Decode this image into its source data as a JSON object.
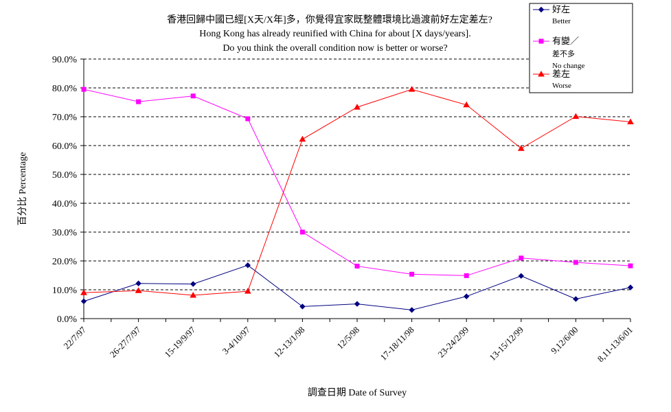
{
  "chart_data": {
    "type": "line",
    "title_lines": [
      "香港回歸中國已經[X天/X年]多，你覺得宜家既整體環境比過渡前好左定差左?",
      "Hong Kong has already reunified with China for about [X days/years].",
      "Do you think the overall condition now is better or worse?"
    ],
    "xlabel": "調查日期 Date of Survey",
    "ylabel": "百分比 Percentage",
    "ylim": [
      0,
      90
    ],
    "ytick_step": 10,
    "ytick_labels": [
      "0.0%",
      "10.0%",
      "20.0%",
      "30.0%",
      "40.0%",
      "50.0%",
      "60.0%",
      "70.0%",
      "80.0%",
      "90.0%"
    ],
    "grid": "horizontal-dashed",
    "legend_position": "top-right",
    "categories": [
      "22/7/97",
      "26-27/7/97",
      "15-19/9/97",
      "3-4/10/97",
      "12-13/1/98",
      "12/5/98",
      "17-18/11/98",
      "23-24/2/99",
      "13-15/12/99",
      "9,12/6/00",
      "8,11-13/6/01"
    ],
    "x": [
      "22/7/97",
      "",
      "26-27/7/97",
      "",
      "15-19/9/97",
      "",
      "3-4/10/97",
      "",
      "12-13/1/98",
      "",
      "12/5/98",
      "",
      "17-18/11/98",
      "",
      "23-24/2/99",
      "",
      "13-15/12/99",
      "",
      "9,12/6/00",
      "",
      "8,11-13/6/01"
    ],
    "series": [
      {
        "legend_lines": [
          "好左",
          "Better"
        ],
        "color": "#000080",
        "marker": "diamond",
        "values": [
          6.0,
          12.2,
          12.0,
          18.5,
          4.2,
          5.1,
          3.0,
          7.7,
          14.8,
          6.8,
          10.8
        ]
      },
      {
        "legend_lines": [
          "有變／",
          "差不多",
          "No change"
        ],
        "color": "#ff00ff",
        "marker": "square",
        "values": [
          79.5,
          75.2,
          77.2,
          69.3,
          30.0,
          18.2,
          15.4,
          14.9,
          21.0,
          19.5,
          18.3
        ]
      },
      {
        "legend_lines": [
          "差左",
          "Worse"
        ],
        "color": "#ff0000",
        "marker": "triangle",
        "values": [
          9.0,
          9.7,
          8.1,
          9.5,
          62.2,
          73.3,
          79.5,
          74.1,
          59.0,
          70.1,
          68.2
        ]
      }
    ]
  }
}
